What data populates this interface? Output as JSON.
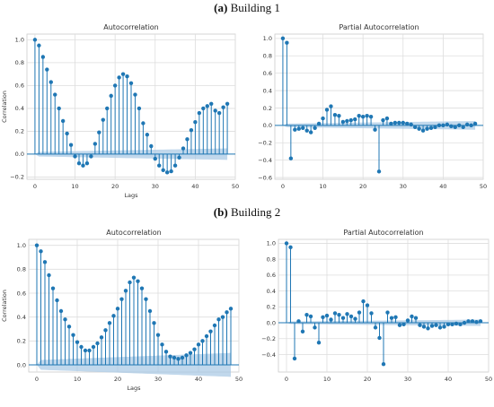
{
  "captions": [
    {
      "label": "(a)",
      "text": "Building 1"
    },
    {
      "label": "(b)",
      "text": "Building 2"
    }
  ],
  "colors": {
    "stem": "#1f77b4",
    "band": "#a6c8e4",
    "grid": "#dddddd",
    "axis": "#333333"
  },
  "chart_data": [
    {
      "type": "stem",
      "title": "Autocorrelation",
      "xlabel": "Lags",
      "ylabel": "Correlation",
      "xlim": [
        -2,
        50
      ],
      "ylim": [
        -0.22,
        1.05
      ],
      "xticks": [
        0,
        10,
        20,
        30,
        40,
        50
      ],
      "yticks": [
        -0.2,
        0.0,
        0.2,
        0.4,
        0.6,
        0.8,
        1.0
      ],
      "ytick_labels": [
        "−0.2",
        "0.0",
        "0.2",
        "0.4",
        "0.6",
        "0.8",
        "1.0"
      ],
      "confidence_band": {
        "lower": [
          0,
          0,
          -0.02,
          -0.03,
          -0.035
        ],
        "upper": [
          0,
          0,
          0.02,
          0.03,
          0.035
        ],
        "from_lag": 0
      },
      "band_width_at_end": 0.05,
      "x": [
        0,
        1,
        2,
        3,
        4,
        5,
        6,
        7,
        8,
        9,
        10,
        11,
        12,
        13,
        14,
        15,
        16,
        17,
        18,
        19,
        20,
        21,
        22,
        23,
        24,
        25,
        26,
        27,
        28,
        29,
        30,
        31,
        32,
        33,
        34,
        35,
        36,
        37,
        38,
        39,
        40,
        41,
        42,
        43,
        44,
        45,
        46,
        47,
        48
      ],
      "values": [
        1.0,
        0.95,
        0.85,
        0.74,
        0.63,
        0.52,
        0.4,
        0.29,
        0.18,
        0.08,
        -0.02,
        -0.08,
        -0.1,
        -0.08,
        -0.02,
        0.09,
        0.19,
        0.3,
        0.4,
        0.51,
        0.6,
        0.67,
        0.7,
        0.68,
        0.62,
        0.52,
        0.4,
        0.27,
        0.17,
        0.07,
        -0.04,
        -0.1,
        -0.14,
        -0.16,
        -0.15,
        -0.1,
        -0.03,
        0.05,
        0.13,
        0.21,
        0.28,
        0.36,
        0.4,
        0.42,
        0.44,
        0.38,
        0.36,
        0.41,
        0.44
      ],
      "grid": true,
      "grid_style": "seaborn-whitegrid"
    },
    {
      "type": "stem",
      "title": "Partial Autocorrelation",
      "xlabel": "",
      "ylabel": "",
      "xlim": [
        -2,
        50
      ],
      "ylim": [
        -0.62,
        1.05
      ],
      "xticks": [
        0,
        10,
        20,
        30,
        40,
        50
      ],
      "yticks": [
        -0.6,
        -0.4,
        -0.2,
        0.0,
        0.2,
        0.4,
        0.6,
        0.8,
        1.0
      ],
      "ytick_labels": [
        "−0.6",
        "−0.4",
        "−0.2",
        "0.0",
        "0.2",
        "0.4",
        "0.6",
        "0.8",
        "1.0"
      ],
      "band_width_at_end": 0.05,
      "x": [
        0,
        1,
        2,
        3,
        4,
        5,
        6,
        7,
        8,
        9,
        10,
        11,
        12,
        13,
        14,
        15,
        16,
        17,
        18,
        19,
        20,
        21,
        22,
        23,
        24,
        25,
        26,
        27,
        28,
        29,
        30,
        31,
        32,
        33,
        34,
        35,
        36,
        37,
        38,
        39,
        40,
        41,
        42,
        43,
        44,
        45,
        46,
        47,
        48
      ],
      "values": [
        1.0,
        0.95,
        -0.38,
        -0.05,
        -0.04,
        -0.03,
        -0.06,
        -0.08,
        -0.03,
        0.02,
        0.08,
        0.18,
        0.22,
        0.12,
        0.11,
        0.04,
        0.05,
        0.06,
        0.07,
        0.11,
        0.1,
        0.11,
        0.1,
        -0.05,
        -0.53,
        0.06,
        0.08,
        0.02,
        0.03,
        0.03,
        0.03,
        0.02,
        0.01,
        -0.02,
        -0.04,
        -0.06,
        -0.04,
        -0.03,
        -0.02,
        0.0,
        0.0,
        0.01,
        -0.01,
        -0.02,
        0.0,
        -0.02,
        0.01,
        0.0,
        0.02
      ],
      "grid": true,
      "grid_style": "seaborn-whitegrid"
    },
    {
      "type": "stem",
      "title": "Autocorrelation",
      "xlabel": "Lags",
      "ylabel": "Correlation",
      "xlim": [
        -2,
        50
      ],
      "ylim": [
        -0.06,
        1.05
      ],
      "xticks": [
        0,
        10,
        20,
        30,
        40,
        50
      ],
      "yticks": [
        0.0,
        0.2,
        0.4,
        0.6,
        0.8,
        1.0
      ],
      "ytick_labels": [
        "0.0",
        "0.2",
        "0.4",
        "0.6",
        "0.8",
        "1.0"
      ],
      "band_width_at_end": 0.1,
      "x": [
        0,
        1,
        2,
        3,
        4,
        5,
        6,
        7,
        8,
        9,
        10,
        11,
        12,
        13,
        14,
        15,
        16,
        17,
        18,
        19,
        20,
        21,
        22,
        23,
        24,
        25,
        26,
        27,
        28,
        29,
        30,
        31,
        32,
        33,
        34,
        35,
        36,
        37,
        38,
        39,
        40,
        41,
        42,
        43,
        44,
        45,
        46,
        47,
        48
      ],
      "values": [
        1.0,
        0.95,
        0.86,
        0.75,
        0.64,
        0.54,
        0.45,
        0.38,
        0.32,
        0.25,
        0.19,
        0.15,
        0.12,
        0.12,
        0.15,
        0.18,
        0.23,
        0.29,
        0.35,
        0.41,
        0.47,
        0.55,
        0.62,
        0.69,
        0.73,
        0.7,
        0.64,
        0.55,
        0.45,
        0.35,
        0.25,
        0.17,
        0.11,
        0.07,
        0.06,
        0.05,
        0.06,
        0.08,
        0.1,
        0.13,
        0.17,
        0.2,
        0.24,
        0.28,
        0.33,
        0.38,
        0.4,
        0.44,
        0.47
      ],
      "grid": true,
      "grid_style": "seaborn-whitegrid"
    },
    {
      "type": "stem",
      "title": "Partial Autocorrelation",
      "xlabel": "",
      "ylabel": "",
      "xlim": [
        -2,
        50
      ],
      "ylim": [
        -0.62,
        1.05
      ],
      "xticks": [
        0,
        10,
        20,
        30,
        40,
        50
      ],
      "yticks": [
        -0.4,
        -0.2,
        0.0,
        0.2,
        0.4,
        0.6,
        0.8,
        1.0
      ],
      "ytick_labels": [
        "−0.4",
        "−0.2",
        "0.0",
        "0.2",
        "0.4",
        "0.6",
        "0.8",
        "1.0"
      ],
      "band_width_at_end": 0.04,
      "x": [
        0,
        1,
        2,
        3,
        4,
        5,
        6,
        7,
        8,
        9,
        10,
        11,
        12,
        13,
        14,
        15,
        16,
        17,
        18,
        19,
        20,
        21,
        22,
        23,
        24,
        25,
        26,
        27,
        28,
        29,
        30,
        31,
        32,
        33,
        34,
        35,
        36,
        37,
        38,
        39,
        40,
        41,
        42,
        43,
        44,
        45,
        46,
        47,
        48
      ],
      "values": [
        1.0,
        0.95,
        -0.45,
        0.02,
        -0.11,
        0.1,
        0.08,
        -0.06,
        -0.25,
        0.07,
        0.09,
        0.04,
        0.12,
        0.1,
        0.06,
        0.11,
        0.08,
        0.05,
        0.13,
        0.27,
        0.22,
        0.12,
        -0.06,
        -0.19,
        -0.52,
        0.13,
        0.06,
        0.07,
        -0.03,
        -0.02,
        0.03,
        0.08,
        0.06,
        -0.03,
        -0.05,
        -0.07,
        -0.04,
        -0.03,
        -0.06,
        -0.05,
        -0.02,
        -0.02,
        -0.01,
        -0.02,
        0.0,
        0.02,
        0.02,
        0.01,
        0.02
      ],
      "grid": true,
      "grid_style": "seaborn-whitegrid"
    }
  ]
}
